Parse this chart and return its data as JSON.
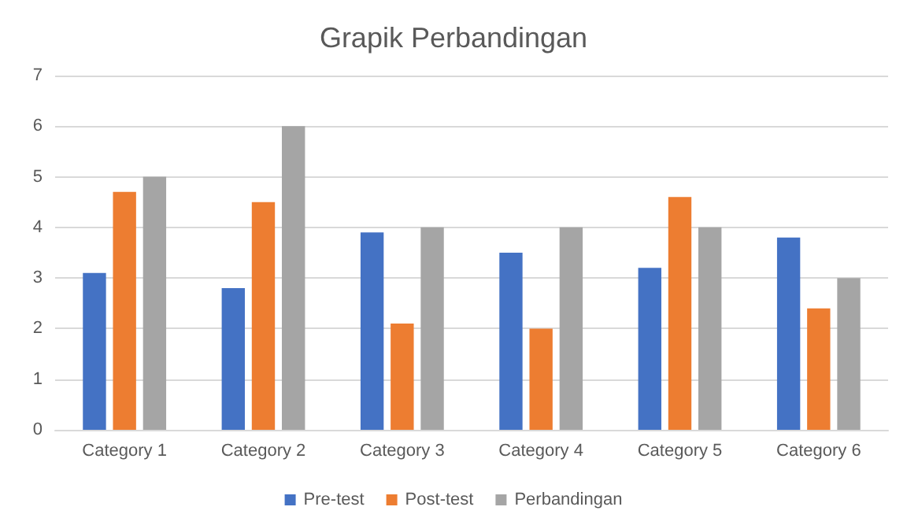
{
  "chart_data": {
    "type": "bar",
    "title": "Grapik Perbandingan",
    "categories": [
      "Category 1",
      "Category 2",
      "Category 3",
      "Category 4",
      "Category 5",
      "Category 6"
    ],
    "series": [
      {
        "name": "Pre-test",
        "color": "#4472c4",
        "values": [
          3.1,
          2.8,
          3.9,
          3.5,
          3.2,
          3.8
        ]
      },
      {
        "name": "Post-test",
        "color": "#ed7d31",
        "values": [
          4.7,
          4.5,
          2.1,
          2.0,
          4.6,
          2.4
        ]
      },
      {
        "name": "Perbandingan",
        "color": "#a5a5a5",
        "values": [
          5,
          6,
          4,
          4,
          4,
          3
        ]
      }
    ],
    "ylim": [
      0,
      7
    ],
    "yticks": [
      0,
      1,
      2,
      3,
      4,
      5,
      6,
      7
    ],
    "grid": "y",
    "legend": "bottom"
  }
}
